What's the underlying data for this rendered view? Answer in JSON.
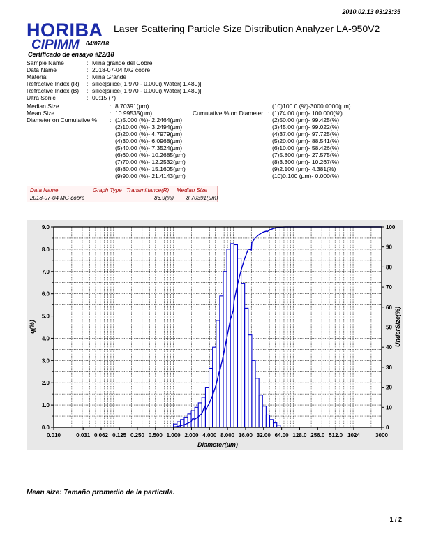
{
  "header": {
    "timestamp": "2010.02.13 03:23:35",
    "logo_text": "HORIBA",
    "lab_text": "CIPIMM",
    "logo_date": "04/07/18",
    "title": "Laser Scattering Particle Size Distribution Analyzer LA-950V2",
    "certificate": "Certificado de ensayo #22/18"
  },
  "sample_info": [
    {
      "label": "Sample Name",
      "value": "Mina grande del Cobre"
    },
    {
      "label": "Data Name",
      "value": "2018-07-04 MG cobre"
    },
    {
      "label": "Material",
      "value": "Mina Grande"
    },
    {
      "label": "Refractive Index (R)",
      "value": "silice[silice( 1.970 -  0.000i),Water( 1.480)]"
    },
    {
      "label": "Refractive Index (B)",
      "value": "silice[silice( 1.970 -  0.000i),Water( 1.480)]"
    },
    {
      "label": "Ultra Sonic",
      "value": "00:15 (7)"
    }
  ],
  "stats": {
    "median_label": "Median Size",
    "median_value": "8.70391(µm)",
    "mean_label": "Mean Size",
    "mean_value": "10.99535(µm)",
    "diam_cum_label": "Diameter on Cumulative %",
    "diam_cum": [
      "(1)5.000 (%)-   2.2464(µm)",
      "(2)10.00 (%)-   3.2494(µm)",
      "(3)20.00 (%)-   4.7979(µm)",
      "(4)30.00 (%)-   6.0968(µm)",
      "(5)40.00 (%)-   7.3524(µm)",
      "(6)60.00 (%)-  10.2685(µm)",
      "(7)70.00 (%)-  12.2532(µm)",
      "(8)80.00 (%)-  15.1605(µm)",
      "(9)90.00 (%)-  21.4143(µm)"
    ],
    "range_text": "(10)100.0 (%)-3000.0000(µm)",
    "cum_on_diam_label": "Cumulative % on Diameter",
    "cum_on_diam": [
      "(1)74.00 (µm)-  100.000(%)",
      "(2)50.00 (µm)-   99.425(%)",
      "(3)45.00 (µm)-   99.022(%)",
      "(4)37.00 (µm)-   97.725(%)",
      "(5)20.00 (µm)-   88.541(%)",
      "(6)10.00 (µm)-   58.426(%)",
      "(7)5.800 (µm)-   27.575(%)",
      "(8)3.300 (µm)-   10.267(%)",
      "(9)2.100 (µm)-    4.381(%)",
      "(10)0.100 (µm)-    0.000(%)"
    ]
  },
  "data_table": {
    "headers": [
      "Data Name",
      "Graph Type",
      "Transmittance(R)",
      "Median Size"
    ],
    "row": [
      "2018-07-04 MG cobre",
      "",
      "86.9(%)",
      "8.70391(µm)"
    ]
  },
  "chart_data": {
    "type": "bar",
    "xlabel": "Diameter(µm)",
    "ylabel": "q(%)",
    "y2label": "UnderSize(%)",
    "xscale": "log",
    "xlim": [
      0.01,
      3000
    ],
    "ylim": [
      0,
      9
    ],
    "y2lim": [
      0,
      100
    ],
    "xticks": [
      "0.010",
      "0.031",
      "0.062",
      "0.125",
      "0.250",
      "0.500",
      "1.000",
      "2.000",
      "4.000",
      "8.000",
      "16.00",
      "32.00",
      "64.00",
      "128.0",
      "256.0",
      "512.0",
      "1024",
      "3000"
    ],
    "yticks": [
      "0.0",
      "1.0",
      "2.0",
      "3.0",
      "4.0",
      "5.0",
      "6.0",
      "7.0",
      "8.0",
      "9.0"
    ],
    "y2ticks": [
      "0",
      "10",
      "20",
      "30",
      "40",
      "50",
      "60",
      "70",
      "80",
      "90",
      "100"
    ],
    "grid": true,
    "series": [
      {
        "type": "bar",
        "color": "#0000cc",
        "x": [
          1.0,
          1.15,
          1.31,
          1.51,
          1.73,
          1.98,
          2.27,
          2.6,
          2.98,
          3.42,
          3.92,
          4.5,
          5.16,
          5.92,
          6.79,
          7.78,
          8.93,
          10.24,
          11.75,
          13.48,
          15.46,
          17.74,
          20.35,
          23.34,
          26.77,
          30.71,
          35.23,
          40.41,
          46.36,
          53.18
        ],
        "values": [
          0.15,
          0.25,
          0.35,
          0.45,
          0.6,
          0.75,
          0.9,
          1.1,
          1.35,
          1.8,
          2.65,
          3.6,
          4.8,
          5.9,
          7.0,
          8.0,
          8.25,
          8.2,
          7.6,
          6.45,
          5.35,
          4.15,
          3.0,
          2.2,
          1.45,
          0.95,
          0.55,
          0.35,
          0.2,
          0.1
        ]
      },
      {
        "type": "line",
        "color": "#0000cc",
        "x": [
          0.93,
          1.0,
          1.15,
          1.31,
          1.51,
          1.73,
          1.98,
          2.1,
          2.27,
          2.6,
          2.98,
          3.3,
          3.42,
          3.92,
          4.5,
          5.16,
          5.8,
          5.92,
          6.79,
          7.78,
          8.93,
          10.0,
          10.24,
          11.75,
          13.48,
          15.46,
          17.74,
          20.0,
          20.35,
          23.34,
          26.77,
          30.71,
          35.23,
          37.0,
          40.41,
          45.0,
          46.36,
          50.0,
          53.18,
          61.0,
          74.0,
          3000
        ],
        "values": [
          0,
          0.15,
          0.4,
          0.8,
          1.3,
          2.0,
          2.9,
          4.38,
          4.0,
          5.3,
          6.8,
          10.27,
          8.7,
          11.7,
          15.8,
          21.3,
          27.58,
          27.9,
          35.7,
          44.6,
          53.8,
          58.43,
          62.9,
          71.3,
          78.4,
          84.3,
          88.9,
          88.54,
          92.2,
          94.6,
          96.2,
          97.3,
          97.9,
          97.73,
          98.6,
          99.02,
          99.3,
          99.43,
          99.6,
          99.9,
          100.0,
          100.0
        ]
      }
    ]
  },
  "footnote": "Mean size: Tamaño promedio de la partícula.",
  "page_number": "1 / 2"
}
